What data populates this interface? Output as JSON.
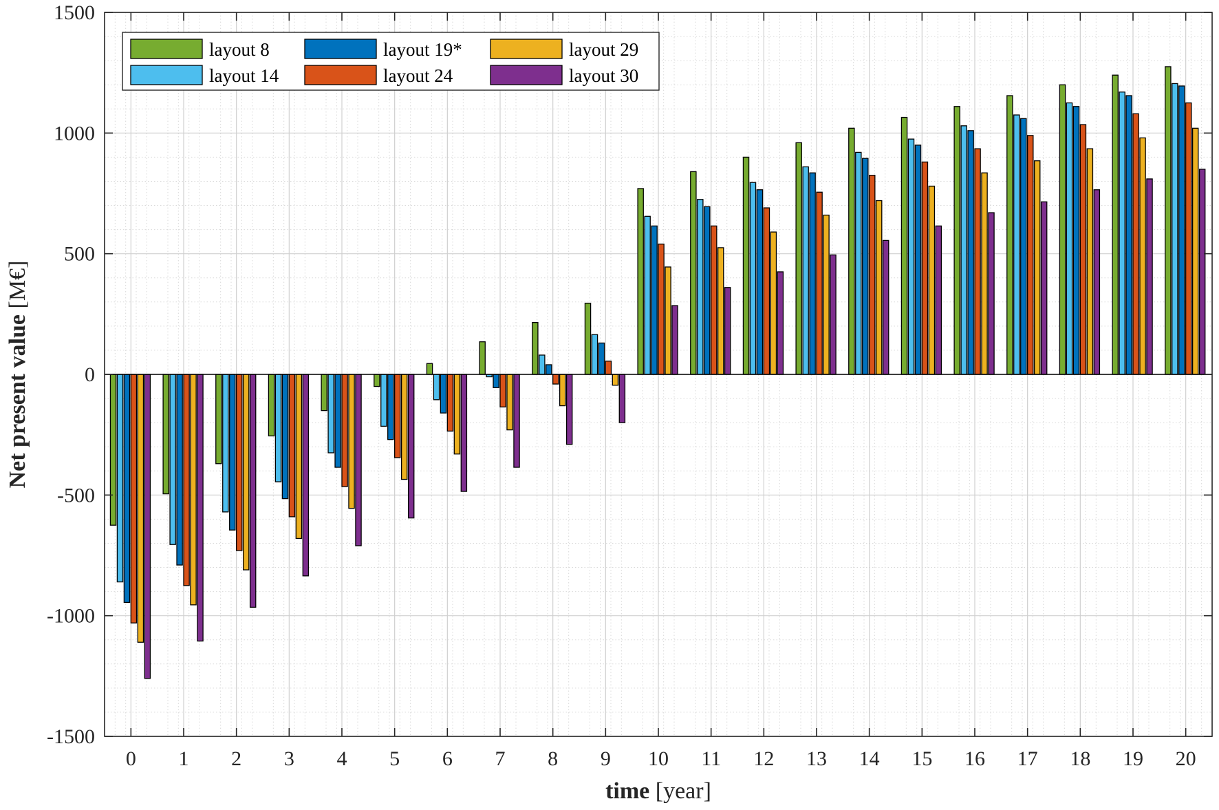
{
  "chart_data": {
    "type": "bar",
    "title": "",
    "xlabel_bold": "time",
    "xlabel_rest": " [year]",
    "ylabel_bold": "Net present value",
    "ylabel_rest": " [M€]",
    "ylim": [
      -1500,
      1500
    ],
    "yticks": [
      -1500,
      -1000,
      -500,
      0,
      500,
      1000,
      1500
    ],
    "ytick_labels": [
      "-1500",
      "-1000",
      "-500",
      "0",
      "500",
      "1000",
      "1500"
    ],
    "grid": true,
    "minor_grid": true,
    "legend_position": "top-left",
    "categories": [
      "0",
      "1",
      "2",
      "3",
      "4",
      "5",
      "6",
      "7",
      "8",
      "9",
      "10",
      "11",
      "12",
      "13",
      "14",
      "15",
      "16",
      "17",
      "18",
      "19",
      "20"
    ],
    "series": [
      {
        "name": "layout 8",
        "color": "#77AC30",
        "values": [
          -625,
          -495,
          -370,
          -255,
          -150,
          -50,
          45,
          135,
          215,
          295,
          770,
          840,
          900,
          960,
          1020,
          1065,
          1110,
          1155,
          1200,
          1240,
          1275
        ]
      },
      {
        "name": "layout 14",
        "color": "#4DBEEE",
        "values": [
          -860,
          -705,
          -570,
          -445,
          -325,
          -215,
          -105,
          -10,
          80,
          165,
          655,
          725,
          795,
          860,
          920,
          975,
          1030,
          1075,
          1125,
          1170,
          1205
        ]
      },
      {
        "name": "layout 19*",
        "color": "#0072BD",
        "values": [
          -945,
          -790,
          -645,
          -515,
          -385,
          -270,
          -160,
          -55,
          40,
          130,
          615,
          695,
          765,
          835,
          895,
          950,
          1010,
          1060,
          1110,
          1155,
          1195
        ]
      },
      {
        "name": "layout 24",
        "color": "#D95319",
        "values": [
          -1030,
          -875,
          -730,
          -590,
          -465,
          -345,
          -235,
          -135,
          -40,
          55,
          540,
          615,
          690,
          755,
          825,
          880,
          935,
          990,
          1035,
          1080,
          1125
        ]
      },
      {
        "name": "layout 29",
        "color": "#EDB120",
        "values": [
          -1110,
          -955,
          -810,
          -680,
          -555,
          -435,
          -330,
          -230,
          -130,
          -45,
          445,
          525,
          590,
          660,
          720,
          780,
          835,
          885,
          935,
          980,
          1020
        ]
      },
      {
        "name": "layout 30",
        "color": "#7E2F8E",
        "values": [
          -1260,
          -1105,
          -965,
          -835,
          -710,
          -595,
          -485,
          -385,
          -290,
          -200,
          285,
          360,
          425,
          495,
          555,
          615,
          670,
          715,
          765,
          810,
          850
        ]
      }
    ],
    "legend_order": [
      0,
      2,
      4,
      1,
      3,
      5
    ]
  }
}
